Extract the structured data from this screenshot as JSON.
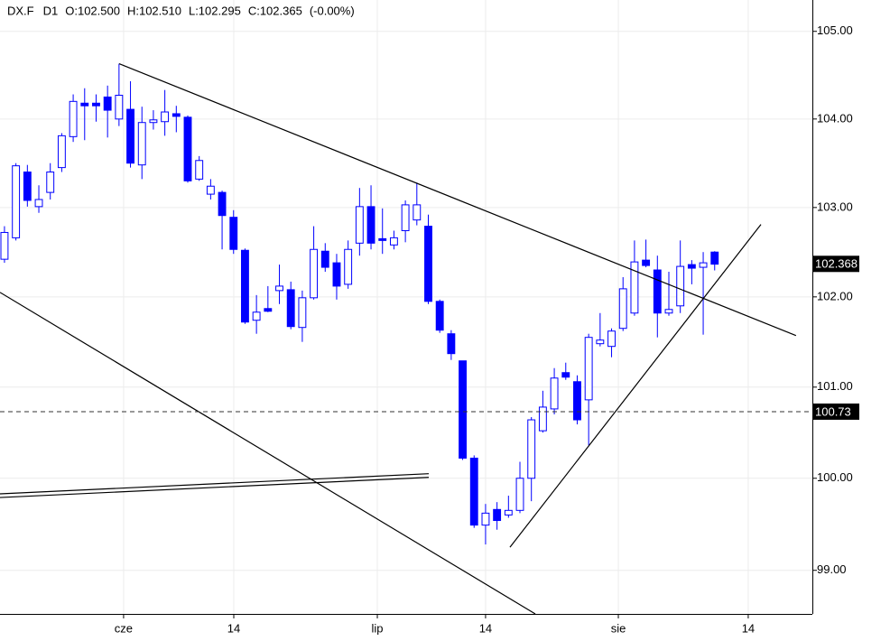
{
  "chart_data": {
    "type": "candlestick",
    "header": [
      "DX.F",
      "D1",
      "O:102.500",
      "H:102.510",
      "L:102.295",
      "C:102.365",
      "(-0.00%)"
    ],
    "up_color": "#ffffff",
    "down_color": "#0000ff",
    "edge_color": "#0000ff",
    "yscale": "log",
    "grid": true,
    "x": [
      0,
      1,
      2,
      3,
      4,
      5,
      6,
      7,
      8,
      9,
      10,
      11,
      12,
      13,
      14,
      15,
      16,
      17,
      18,
      19,
      20,
      21,
      22,
      23,
      24,
      25,
      26,
      27,
      28,
      29,
      30,
      31,
      32,
      33,
      34,
      35,
      36,
      37,
      38,
      39,
      40,
      41,
      42,
      43,
      44,
      45,
      46,
      47,
      48,
      49,
      50,
      51,
      52,
      53,
      54,
      55,
      56,
      57,
      58,
      59,
      60,
      61,
      62
    ],
    "open": [
      102.42,
      102.66,
      103.4,
      103.01,
      103.17,
      103.45,
      103.8,
      104.18,
      104.18,
      104.25,
      104.0,
      104.11,
      103.48,
      103.96,
      103.97,
      104.06,
      104.02,
      103.32,
      103.15,
      103.17,
      102.89,
      102.52,
      101.74,
      101.87,
      102.07,
      102.08,
      101.66,
      101.99,
      102.51,
      102.38,
      102.14,
      102.6,
      103.01,
      102.65,
      102.58,
      102.74,
      102.86,
      102.79,
      101.95,
      101.59,
      101.29,
      100.22,
      99.49,
      99.66,
      99.6,
      99.65,
      100.0,
      100.52,
      100.76,
      101.16,
      101.06,
      100.86,
      101.48,
      101.45,
      101.65,
      101.82,
      102.41,
      102.3,
      101.82,
      101.9,
      102.36,
      102.33,
      102.5
    ],
    "high": [
      102.79,
      103.5,
      103.48,
      103.25,
      103.5,
      103.84,
      104.28,
      104.35,
      104.28,
      104.38,
      104.63,
      104.43,
      104.14,
      104.1,
      104.33,
      104.15,
      104.04,
      103.58,
      103.32,
      103.19,
      102.97,
      102.54,
      102.02,
      102.12,
      102.36,
      102.17,
      102.07,
      102.79,
      102.6,
      102.48,
      102.63,
      103.22,
      103.25,
      102.99,
      102.74,
      103.08,
      103.28,
      102.92,
      101.97,
      101.63,
      101.29,
      100.25,
      99.72,
      99.74,
      99.81,
      100.18,
      100.67,
      100.96,
      101.21,
      101.27,
      101.13,
      101.59,
      101.82,
      101.65,
      102.22,
      102.63,
      102.64,
      102.46,
      102.28,
      102.63,
      102.41,
      102.5,
      102.51
    ],
    "low": [
      102.38,
      102.63,
      103.01,
      102.94,
      103.09,
      103.4,
      103.74,
      103.76,
      103.97,
      103.79,
      103.92,
      103.45,
      103.32,
      103.88,
      103.81,
      103.85,
      103.28,
      103.3,
      103.09,
      102.53,
      102.48,
      101.7,
      101.59,
      101.83,
      101.92,
      101.64,
      101.5,
      101.97,
      102.28,
      101.97,
      102.09,
      102.46,
      102.53,
      102.48,
      102.53,
      102.61,
      102.8,
      101.92,
      101.6,
      101.3,
      100.2,
      99.46,
      99.28,
      99.44,
      99.57,
      99.62,
      99.75,
      100.5,
      100.7,
      101.08,
      100.59,
      100.36,
      101.45,
      101.33,
      101.62,
      101.79,
      102.33,
      101.55,
      101.79,
      101.82,
      102.14,
      101.58,
      102.295
    ],
    "close": [
      102.72,
      103.47,
      103.08,
      103.09,
      103.4,
      103.81,
      104.2,
      104.15,
      104.15,
      104.1,
      104.27,
      103.5,
      103.96,
      103.99,
      104.08,
      104.03,
      103.3,
      103.53,
      103.24,
      102.91,
      102.53,
      101.72,
      101.83,
      101.84,
      102.12,
      101.67,
      101.99,
      102.53,
      102.33,
      102.12,
      102.53,
      103.01,
      102.6,
      102.63,
      102.66,
      103.03,
      103.03,
      101.95,
      101.63,
      101.37,
      100.22,
      99.49,
      99.62,
      99.54,
      99.65,
      100.0,
      100.64,
      100.78,
      101.1,
      101.11,
      100.64,
      101.55,
      101.52,
      101.62,
      102.09,
      102.39,
      102.35,
      101.82,
      101.86,
      102.34,
      102.32,
      102.38,
      102.365
    ],
    "xlim": [
      -0.39,
      70.53
    ],
    "xticks": [
      {
        "value": 10.4,
        "label": "cze"
      },
      {
        "value": 20.02,
        "label": "14"
      },
      {
        "value": 32.55,
        "label": "lip"
      },
      {
        "value": 42.0,
        "label": "14"
      },
      {
        "value": 53.59,
        "label": "sie"
      },
      {
        "value": 64.93,
        "label": "14"
      }
    ],
    "ylim": [
      98.53,
      105.36
    ],
    "yticks": [
      {
        "value": 99,
        "label": "99.00"
      },
      {
        "value": 100,
        "label": "100.00"
      },
      {
        "value": 101,
        "label": "101.00"
      },
      {
        "value": 102,
        "label": "102.00"
      },
      {
        "value": 103,
        "label": "103.00"
      },
      {
        "value": 104,
        "label": "104.00"
      },
      {
        "value": 105,
        "label": "105.00"
      }
    ],
    "price_marker": {
      "value": 102.368,
      "label": "102.368"
    },
    "horizontal_line": {
      "value": 100.73,
      "label": "100.73"
    },
    "trendlines": [
      {
        "x": [
          10.01,
          69.1
        ],
        "y": [
          104.63,
          101.57
        ]
      },
      {
        "x": [
          -0.39,
          46.34
        ],
        "y": [
          102.05,
          98.53
        ]
      },
      {
        "x": [
          44.13,
          66.04
        ],
        "y": [
          99.25,
          102.81
        ]
      },
      {
        "x": [
          -0.39,
          37.04
        ],
        "y": [
          99.83,
          100.05
        ]
      },
      {
        "x": [
          -0.39,
          37.04
        ],
        "y": [
          99.79,
          100.01
        ]
      }
    ]
  }
}
